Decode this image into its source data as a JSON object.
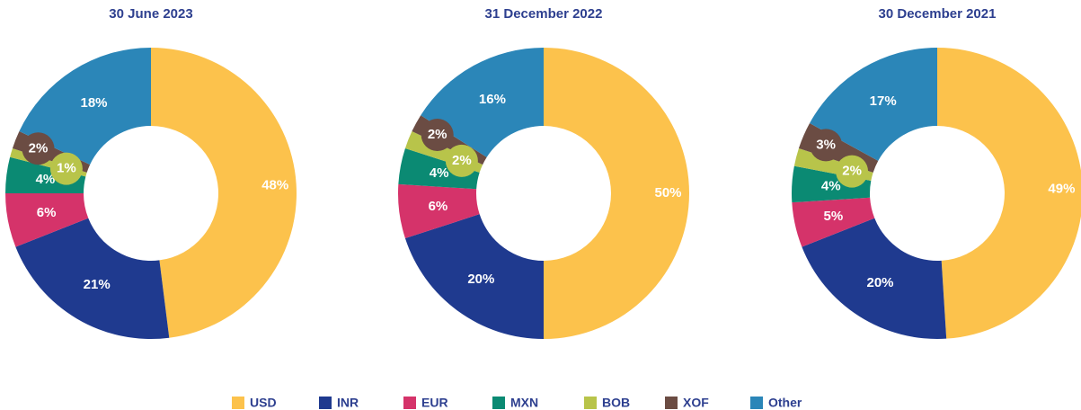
{
  "legend": {
    "categories": [
      "USD",
      "INR",
      "EUR",
      "MXN",
      "BOB",
      "XOF",
      "Other"
    ],
    "colors": [
      "#fcc24c",
      "#1f3a8f",
      "#d5336a",
      "#0b8a73",
      "#b8c44a",
      "#6b4c43",
      "#2b86b8"
    ]
  },
  "chart_data": [
    {
      "type": "pie",
      "title": "30 June 2023",
      "values": [
        48,
        21,
        6,
        4,
        1,
        2,
        18
      ],
      "value_labels": [
        "48%",
        "21%",
        "6%",
        "4%",
        "1%",
        "2%",
        "18%"
      ]
    },
    {
      "type": "pie",
      "title": "31 December 2022",
      "values": [
        50,
        20,
        6,
        4,
        2,
        2,
        16
      ],
      "value_labels": [
        "50%",
        "20%",
        "6%",
        "4%",
        "2%",
        "2%",
        "16%"
      ]
    },
    {
      "type": "pie",
      "title": "30 December 2021",
      "values": [
        49,
        20,
        5,
        4,
        2,
        3,
        17
      ],
      "value_labels": [
        "49%",
        "20%",
        "5%",
        "4%",
        "2%",
        "3%",
        "17%"
      ]
    }
  ]
}
